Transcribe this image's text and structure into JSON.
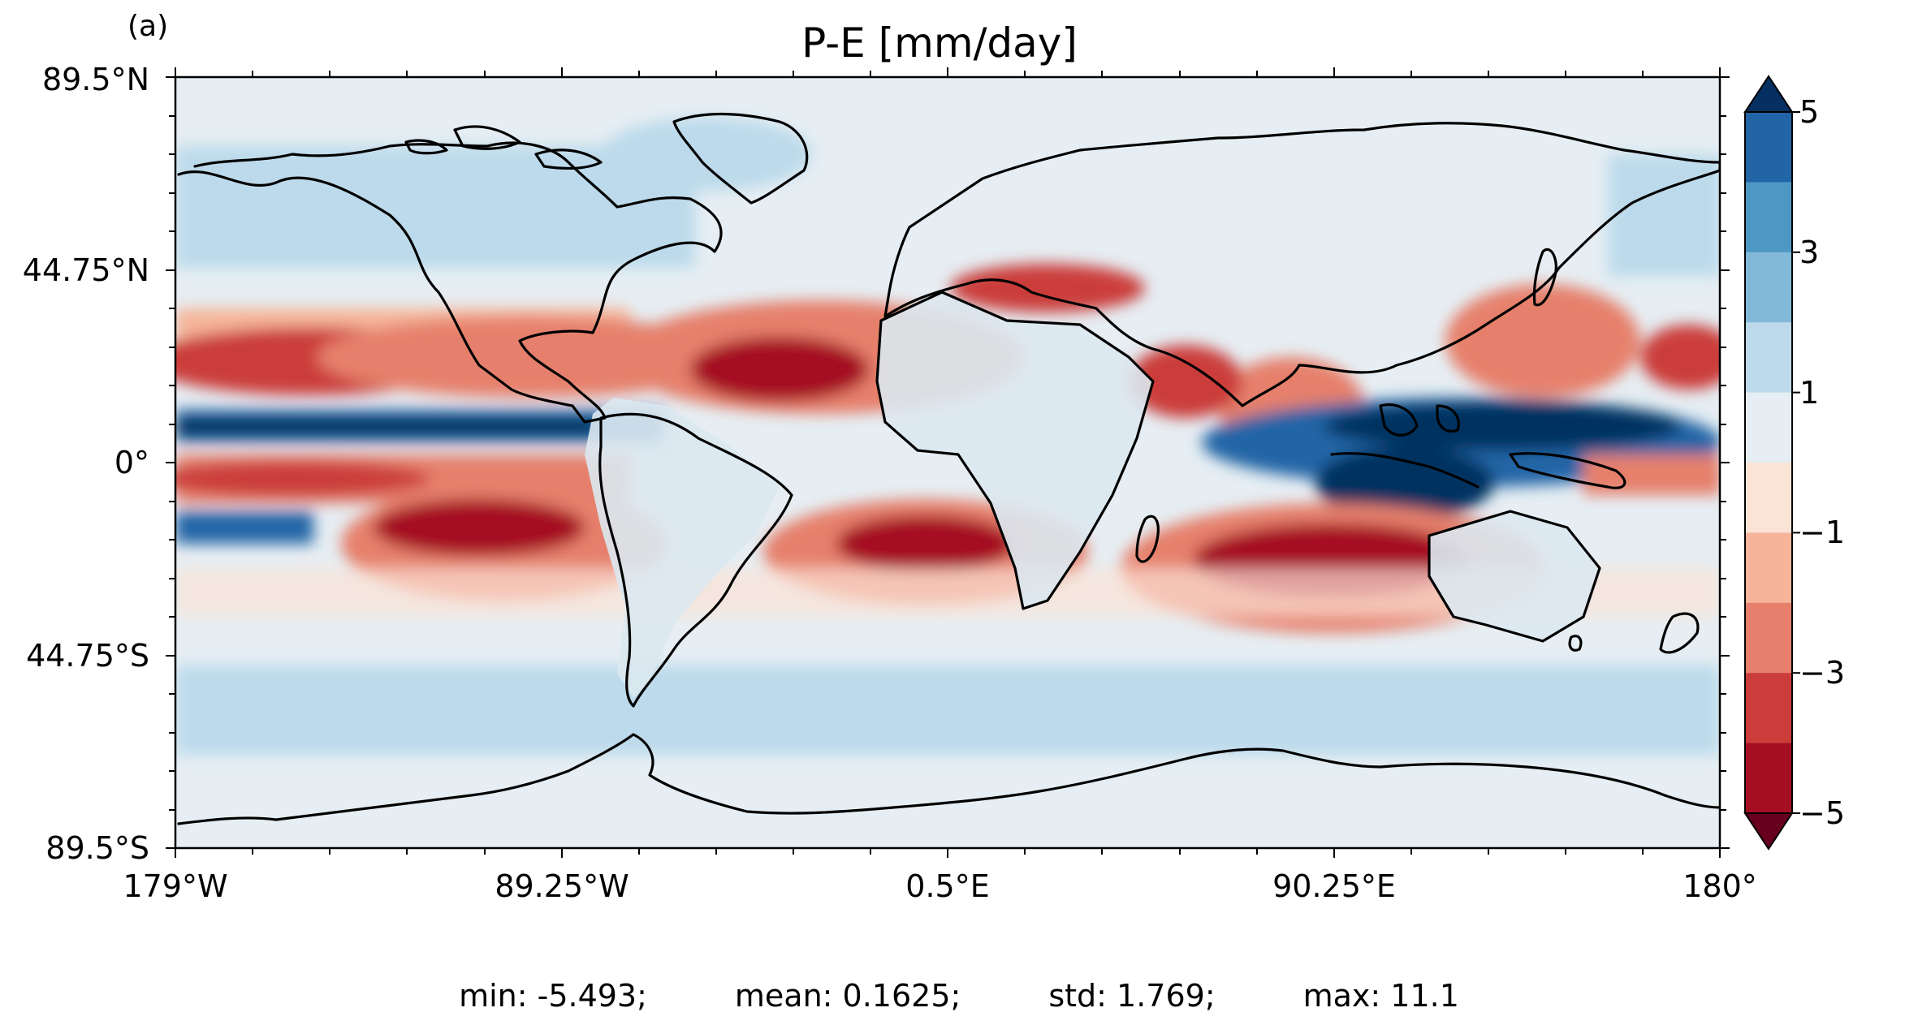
{
  "panel_label": "(a)",
  "title": "P-E [mm/day]",
  "latitude_labels": [
    "89.5°N",
    "44.75°N",
    "0°",
    "44.75°S",
    "89.5°S"
  ],
  "longitude_labels": [
    "179°W",
    "89.25°W",
    "0.5°E",
    "90.25°E",
    "180°"
  ],
  "colorbar": {
    "tick_labels": [
      "5",
      "3",
      "1",
      "−1",
      "−3",
      "−5"
    ],
    "levels": [
      -5,
      -4,
      -3,
      -2,
      -1,
      0,
      1,
      2,
      3,
      4,
      5
    ],
    "extend": "both",
    "colors": [
      "#67001f",
      "#a50f24",
      "#cb3d3a",
      "#e6806c",
      "#f6b59a",
      "#fbe3d6",
      "#e6eef3",
      "#bcdaeb",
      "#83b9d8",
      "#4d97c5",
      "#2265a6",
      "#053061"
    ]
  },
  "stats": {
    "min": "min: -5.493;",
    "mean": "mean: 0.1625;",
    "std": "std: 1.769;",
    "max": "max: 11.1"
  },
  "colors": {
    "coastline": "#000000",
    "ocean_background": "#e6eef3"
  }
}
